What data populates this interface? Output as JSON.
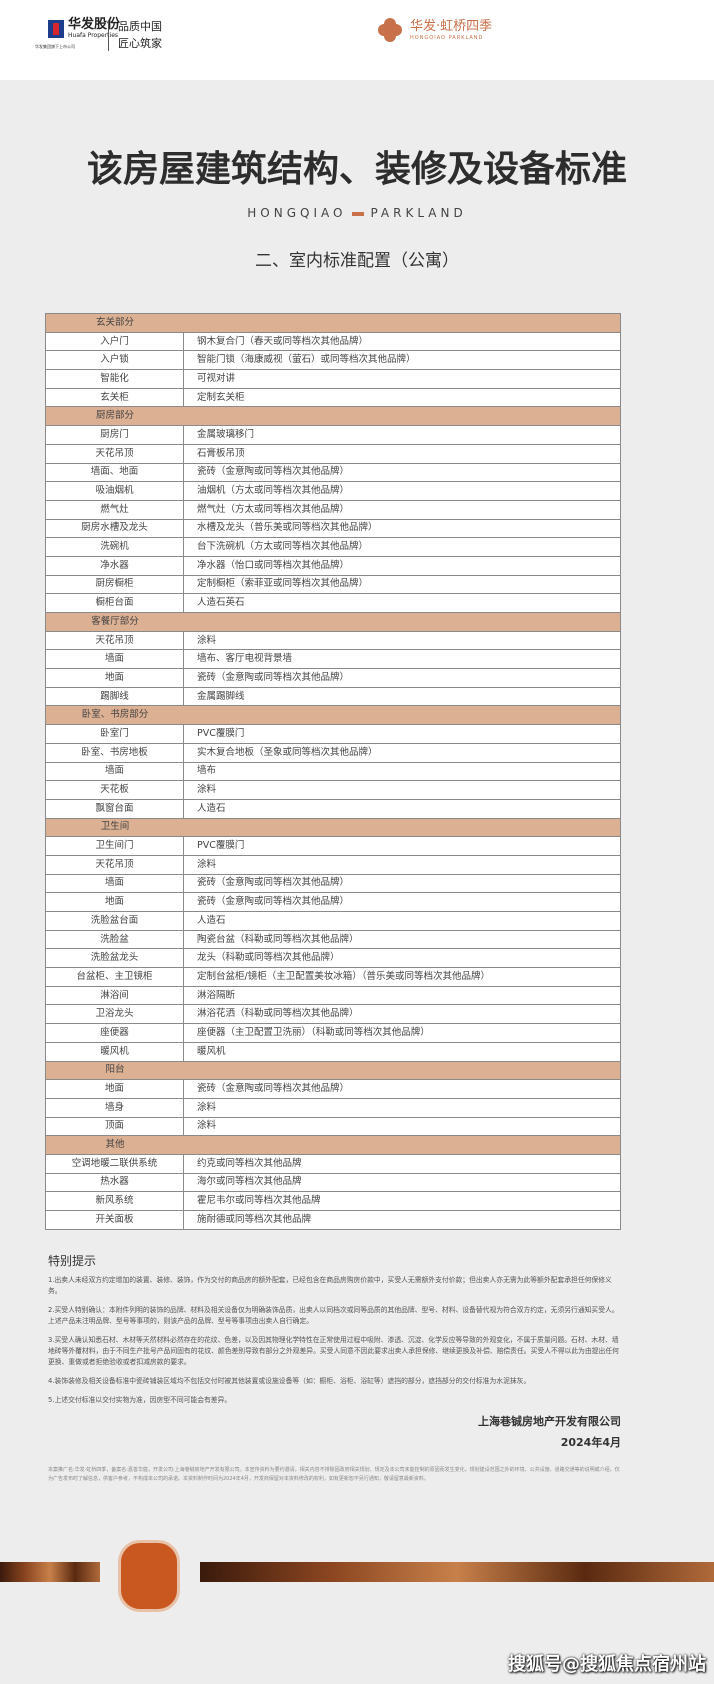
{
  "header": {
    "huafa_name": "华发股份",
    "huafa_en": "Huafa Properties",
    "huafa_sub": "华发集团旗下上市公司",
    "slogan_1": "品质中国",
    "slogan_2": "匠心筑家",
    "project_cn": "华发·虹桥四季",
    "project_en": "HONGQIAO PARKLAND"
  },
  "title": "该房屋建筑结构、装修及设备标准",
  "brand_left": "HONGQIAO",
  "brand_right": "PARKLAND",
  "subtitle": "二、室内标准配置（公寓）",
  "sections": [
    {
      "name": "玄关部分",
      "rows": [
        [
          "入户门",
          "钢木复合门（春天或同等档次其他品牌）"
        ],
        [
          "入户锁",
          "智能门锁（海康威视（萤石）或同等档次其他品牌）"
        ],
        [
          "智能化",
          "可视对讲"
        ],
        [
          "玄关柜",
          "定制玄关柜"
        ]
      ]
    },
    {
      "name": "厨房部分",
      "rows": [
        [
          "厨房门",
          "金属玻璃移门"
        ],
        [
          "天花吊顶",
          "石膏板吊顶"
        ],
        [
          "墙面、地面",
          "瓷砖（金意陶或同等档次其他品牌）"
        ],
        [
          "吸油烟机",
          "油烟机（方太或同等档次其他品牌）"
        ],
        [
          "燃气灶",
          "燃气灶（方太或同等档次其他品牌）"
        ],
        [
          "厨房水槽及龙头",
          "水槽及龙头（普乐美或同等档次其他品牌）"
        ],
        [
          "洗碗机",
          "台下洗碗机（方太或同等档次其他品牌）"
        ],
        [
          "净水器",
          "净水器（怡口或同等档次其他品牌）"
        ],
        [
          "厨房橱柜",
          "定制橱柜（索菲亚或同等档次其他品牌）"
        ],
        [
          "橱柜台面",
          "人造石英石"
        ]
      ]
    },
    {
      "name": "客餐厅部分",
      "rows": [
        [
          "天花吊顶",
          "涂料"
        ],
        [
          "墙面",
          "墙布、客厅电视背景墙"
        ],
        [
          "地面",
          "瓷砖（金意陶或同等档次其他品牌）"
        ],
        [
          "踢脚线",
          "金属踢脚线"
        ]
      ]
    },
    {
      "name": "卧室、书房部分",
      "rows": [
        [
          "卧室门",
          "PVC覆膜门"
        ],
        [
          "卧室、书房地板",
          "实木复合地板（圣象或同等档次其他品牌）"
        ],
        [
          "墙面",
          "墙布"
        ],
        [
          "天花板",
          "涂料"
        ],
        [
          "飘窗台面",
          "人造石"
        ]
      ]
    },
    {
      "name": "卫生间",
      "rows": [
        [
          "卫生间门",
          "PVC覆膜门"
        ],
        [
          "天花吊顶",
          "涂料"
        ],
        [
          "墙面",
          "瓷砖（金意陶或同等档次其他品牌）"
        ],
        [
          "地面",
          "瓷砖（金意陶或同等档次其他品牌）"
        ],
        [
          "洗脸盆台面",
          "人造石"
        ],
        [
          "洗脸盆",
          "陶瓷台盆（科勒或同等档次其他品牌）"
        ],
        [
          "洗脸盆龙头",
          "龙头（科勒或同等档次其他品牌）"
        ],
        [
          "台盆柜、主卫镜柜",
          "定制台盆柜/镜柜（主卫配置美妆冰箱）（普乐美或同等档次其他品牌）"
        ],
        [
          "淋浴间",
          "淋浴隔断"
        ],
        [
          "卫浴龙头",
          "淋浴花洒（科勒或同等档次其他品牌）"
        ],
        [
          "座便器",
          "座便器（主卫配置卫洗丽）（科勒或同等档次其他品牌）"
        ],
        [
          "暖风机",
          "暖风机"
        ]
      ]
    },
    {
      "name": "阳台",
      "rows": [
        [
          "地面",
          "瓷砖（金意陶或同等档次其他品牌）"
        ],
        [
          "墙身",
          "涂料"
        ],
        [
          "顶面",
          "涂料"
        ]
      ]
    },
    {
      "name": "其他",
      "rows": [
        [
          "空调地暖二联供系统",
          "约克或同等档次其他品牌"
        ],
        [
          "热水器",
          "海尔或同等档次其他品牌"
        ],
        [
          "新风系统",
          "霍尼韦尔或同等档次其他品牌"
        ],
        [
          "开关面板",
          "施耐德或同等档次其他品牌"
        ]
      ]
    }
  ],
  "notes": {
    "title": "特别提示",
    "items": [
      "1.出卖人未经双方约定增加的装置、装修、装饰，作为交付的商品房的额外配套，已经包含在商品房购房价款中，买受人无需额外支付价款；但出卖人亦无需为此等额外配套承担任何保修义务。",
      "2.买受人特别确认：本附件列明的装饰的品牌、材料及相关设备仅为明确装饰品质，出卖人以同档次或同等品质的其他品牌、型号、材料、设备替代视为符合双方约定，无须另行通知买受人。上述产品未注明品牌、型号等事项的，则该产品的品牌、型号等事项由出卖人自行确定。",
      "3.买受人确认知悉石材、木材等天然材料必然存在的花纹、色差，以及因其物理化学特性在正常使用过程中吸附、渗透、沉淀、化学反应等导致的外观变化，不属于质量问题。石材、木材、墙地砖等外覆材料，由于不同生产批号产品间固有的花纹、颜色差别导致有部分之外观差异。买受人同意不因此要求出卖人承担保修、继续更换及补偿、赔偿责任。买受人不得以此为由提出任何更换、重做或者拒绝验收或者扣减房款的要求。",
      "4.装饰装修及相关设备标准中瓷砖铺装区域均不包括交付时被其他装置或设施设备等（如：橱柜、浴柜、浴缸等）遮挡的部分，遮挡部分的交付标准为水泥抹灰。",
      "5.上述交付标准以交付实物为准，因房型不同可能会有差异。"
    ]
  },
  "company": "上海巷铖房地产开发有限公司",
  "date": "2024年4月",
  "disclaimer": "本案推广名:华发·虹桥四季，备案名:嘉善华庭，开发公司:上海巷铖房地产开发有限公司。本宣传资料为要约邀请，相关内容不排除因政府相关规划、规定及本公司未能控制的原因而发生变化，规划建设范围之外的环境、公共设施、道路交通等的说明或介绍，仅为广告发布时了解信息，供客户参考，不构成本公司的承诺。本资料制作时间为2024年4月，开发商保留对本资料修改的权利，如有更新恕不另行通知，敬请留意最新资料。",
  "watermark": "搜狐号@搜狐焦点宿州站",
  "colors": {
    "section_header": "#dcb093",
    "brand_accent": "#c8704a"
  }
}
